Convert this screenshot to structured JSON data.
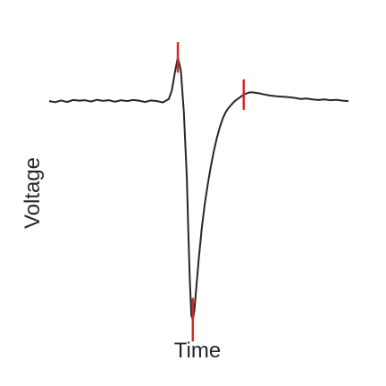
{
  "chart_data": {
    "type": "line",
    "title": "",
    "xlabel": "Time",
    "ylabel": "Voltage",
    "xlim": [
      0,
      100
    ],
    "ylim": [
      -1.05,
      0.25
    ],
    "grid": false,
    "ticks_visible": false,
    "line_color": "#262626",
    "marker_color": "#d62728",
    "series": [
      {
        "x": [
          0,
          2,
          4,
          6,
          8,
          10,
          12,
          14,
          16,
          18,
          20,
          22,
          24,
          26,
          28,
          30,
          32,
          34,
          36,
          38,
          40,
          41,
          42,
          43,
          44,
          45,
          46,
          46.5,
          47,
          47.5,
          48,
          48.5,
          49,
          49.5,
          50,
          50.5,
          51,
          52,
          53,
          54,
          55,
          56,
          57,
          58,
          59,
          60,
          61,
          62,
          63,
          64,
          65,
          66,
          67,
          68,
          69,
          70,
          72,
          74,
          76,
          78,
          80,
          82,
          84,
          86,
          88,
          90,
          92,
          94,
          96,
          98,
          100
        ],
        "y": [
          0,
          -0.005,
          0.003,
          -0.004,
          0.005,
          0.002,
          0.004,
          -0.002,
          0.006,
          0.001,
          0.004,
          -0.003,
          0.004,
          0.0,
          0.005,
          0.002,
          -0.004,
          0.003,
          0.0,
          -0.006,
          0.01,
          0.05,
          0.13,
          0.2,
          0.14,
          -0.05,
          -0.35,
          -0.6,
          -0.82,
          -0.98,
          -1.0,
          -0.96,
          -0.88,
          -0.8,
          -0.72,
          -0.65,
          -0.58,
          -0.47,
          -0.38,
          -0.3,
          -0.23,
          -0.17,
          -0.12,
          -0.08,
          -0.05,
          -0.03,
          -0.015,
          0.0,
          0.01,
          0.02,
          0.03,
          0.035,
          0.04,
          0.04,
          0.038,
          0.036,
          0.03,
          0.025,
          0.022,
          0.02,
          0.018,
          0.015,
          0.01,
          0.012,
          0.008,
          0.005,
          0.008,
          0.004,
          0.006,
          0.002,
          0.0
        ]
      }
    ],
    "markers": [
      {
        "x": 43,
        "y_from": 0.13,
        "y_to": 0.27
      },
      {
        "x": 48,
        "y_from": -1.1,
        "y_to": -0.9
      },
      {
        "x": 65,
        "y_from": -0.04,
        "y_to": 0.1
      }
    ]
  }
}
